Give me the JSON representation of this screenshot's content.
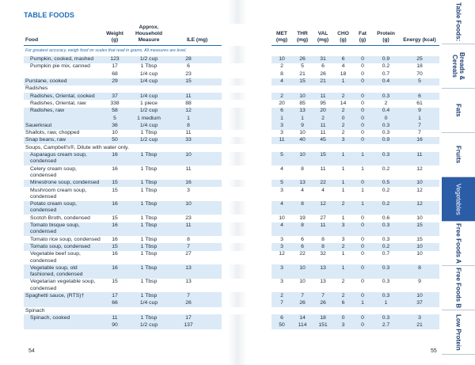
{
  "header": {
    "title": "TABLE FOODS",
    "note": "For greatest accuracy, weigh food on scales that read in grams. All measures are level."
  },
  "columns": [
    "Food",
    "Weight (g)",
    "Approx. Household Measure",
    "ILE (mg)",
    "MET (mg)",
    "THR (mg)",
    "VAL (mg)",
    "CHO (g)",
    "Fat (g)",
    "Protein (g)",
    "Energy (kcal)"
  ],
  "rows": [
    [
      "Pumpkin, cooked, mashed",
      123,
      "1/2 cup",
      28,
      10,
      26,
      31,
      6,
      0,
      0.9,
      25
    ],
    [
      "Pumpkin pie mix, canned",
      17,
      "1 Tbsp",
      6,
      2,
      5,
      6,
      4,
      0,
      0.2,
      18
    ],
    [
      null,
      68,
      "1/4 cup",
      23,
      8,
      21,
      26,
      18,
      0,
      0.7,
      70
    ],
    [
      "Purslane, cooked",
      29,
      "1/4 cup",
      15,
      4,
      15,
      21,
      1,
      0,
      0.4,
      5
    ],
    [
      "Radishes"
    ],
    [
      "Radishes, Oriental, cooked",
      37,
      "1/4 cup",
      11,
      2,
      10,
      11,
      2,
      0,
      0.3,
      6
    ],
    [
      "Radishes, Oriental, raw",
      338,
      "1 piece",
      88,
      20,
      85,
      95,
      14,
      0,
      2,
      61
    ],
    [
      "Radishes, raw",
      58,
      "1/2 cup",
      12,
      6,
      13,
      20,
      2,
      0,
      0.4,
      9
    ],
    [
      null,
      5,
      "1 medium",
      1,
      1,
      1,
      2,
      0,
      0,
      0,
      1
    ],
    [
      "Sauerkraut",
      36,
      "1/4 cup",
      8,
      3,
      9,
      11,
      2,
      0,
      0.3,
      7
    ],
    [
      "Shallots, raw, chopped",
      10,
      "1 Tbsp",
      11,
      3,
      10,
      11,
      2,
      0,
      0.3,
      7
    ],
    [
      "Snap beans, raw",
      50,
      "1/2 cup",
      33,
      11,
      40,
      45,
      3,
      0,
      0.9,
      16
    ],
    [
      "Soups, Campbell's®, Dilute with water only."
    ],
    [
      "Asparagus cream soup, condensed",
      16,
      "1 Tbsp",
      10,
      5,
      10,
      15,
      1,
      1,
      0.3,
      11
    ],
    [
      "Celery cream soup, condensed",
      16,
      "1 Tbsp",
      11,
      4,
      8,
      11,
      1,
      1,
      0.2,
      12
    ],
    [
      "Minestrone soup, condensed",
      15,
      "1 Tbsp",
      16,
      5,
      13,
      22,
      1,
      0,
      0.5,
      10
    ],
    [
      "Mushroom cream soup, condensed",
      15,
      "1 Tbsp",
      3,
      3,
      4,
      4,
      1,
      1,
      0.2,
      12
    ],
    [
      "Potato cream soup, condensed",
      16,
      "1 Tbsp",
      10,
      4,
      8,
      12,
      2,
      1,
      0.2,
      12
    ],
    [
      "Scotch Broth, condensed",
      15,
      "1 Tbsp",
      23,
      10,
      19,
      27,
      1,
      0,
      0.6,
      10
    ],
    [
      "Tomato bisque soup, condensed",
      16,
      "1 Tbsp",
      11,
      4,
      8,
      11,
      3,
      0,
      0.3,
      15
    ],
    [
      "Tomato rice soup, condensed",
      16,
      "1 Tbsp",
      8,
      3,
      6,
      8,
      3,
      0,
      0.3,
      15
    ],
    [
      "Tomato soup, condensed",
      15,
      "1 Tbsp",
      7,
      3,
      6,
      8,
      2,
      0,
      0.2,
      10
    ],
    [
      "Vegetable beef soup, condensed",
      16,
      "1 Tbsp",
      27,
      12,
      22,
      32,
      1,
      0,
      0.7,
      10
    ],
    [
      "Vegetable soup, old fashioned, condensed",
      16,
      "1 Tbsp",
      13,
      3,
      10,
      13,
      1,
      0,
      0.3,
      8
    ],
    [
      "Vegetarian vegetable soup, condensed",
      15,
      "1 Tbsp",
      13,
      3,
      10,
      13,
      2,
      0,
      0.3,
      9
    ],
    [
      "Spaghetti sauce, (RTS)†",
      17,
      "1 Tbsp",
      7,
      2,
      7,
      7,
      2,
      0,
      0.3,
      10
    ],
    [
      null,
      66,
      "1/4 cup",
      26,
      7,
      26,
      26,
      6,
      1,
      1,
      37
    ],
    [
      "Spinach"
    ],
    [
      "Spinach, cooked",
      11,
      "1 Tbsp",
      17,
      6,
      14,
      18,
      0,
      0,
      0.3,
      3
    ],
    [
      null,
      90,
      "1/2 cup",
      137,
      50,
      114,
      151,
      3,
      0,
      2.7,
      21
    ]
  ],
  "page_numbers": [
    54,
    55
  ],
  "tabs": [
    "Table Foods:",
    "Breads & Cereals",
    "Fats",
    "Fruits",
    "Vegetables",
    "Free Foods A",
    "Free Foods B",
    "Low Protein"
  ],
  "active_tab": 4
}
